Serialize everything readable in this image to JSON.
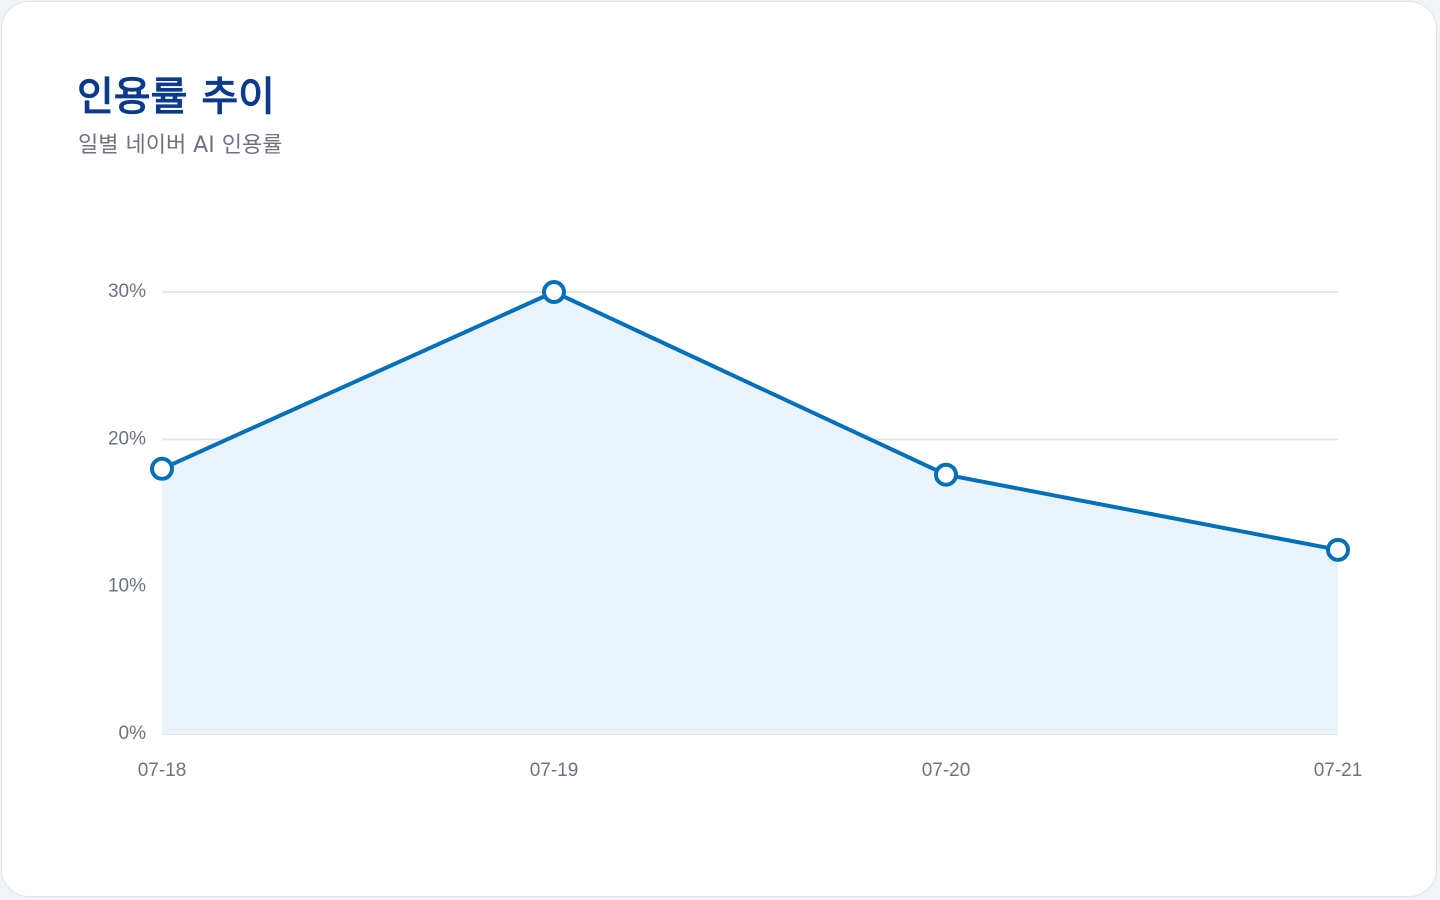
{
  "chart_data": {
    "type": "line",
    "title": "인용률 추이",
    "subtitle": "일별 네이버 AI 인용률",
    "categories": [
      "07-18",
      "07-19",
      "07-20",
      "07-21"
    ],
    "values": [
      18,
      30,
      17.6,
      12.5
    ],
    "color": "#0270b8",
    "area_color": "#eaf2fa",
    "ylim": [
      0,
      30
    ],
    "yticks": [
      {
        "value": 0,
        "label": "0%"
      },
      {
        "value": 10,
        "label": "10%"
      },
      {
        "value": 20,
        "label": "20%"
      },
      {
        "value": 30,
        "label": "30%"
      }
    ],
    "grid": true
  }
}
